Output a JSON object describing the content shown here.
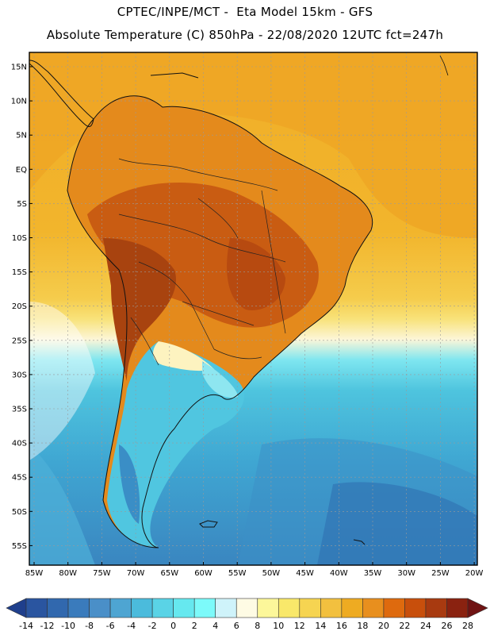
{
  "header": {
    "line1": "CPTEC/INPE/MCT -  Eta Model 15km - GFS",
    "line2": "Absolute Temperature (C) 850hPa - 22/08/2020 12UTC fct=247h"
  },
  "map": {
    "lat_labels": [
      "15N",
      "10N",
      "5N",
      "EQ",
      "5S",
      "10S",
      "15S",
      "20S",
      "25S",
      "30S",
      "35S",
      "40S",
      "45S",
      "50S",
      "55S"
    ],
    "lon_labels": [
      "85W",
      "80W",
      "75W",
      "70W",
      "65W",
      "60W",
      "55W",
      "50W",
      "45W",
      "40W",
      "35W",
      "30W",
      "25W",
      "20W"
    ]
  },
  "colorbar": {
    "labels": [
      "-14",
      "-12",
      "-10",
      "-8",
      "-6",
      "-4",
      "-2",
      "0",
      "2",
      "4",
      "6",
      "8",
      "10",
      "12",
      "14",
      "16",
      "18",
      "20",
      "22",
      "24",
      "26",
      "28"
    ],
    "colors": [
      "#1f3f8c",
      "#2a55a0",
      "#3168ae",
      "#3a7bbc",
      "#4a8fc8",
      "#4ea5d2",
      "#4bbbdc",
      "#5ad3e6",
      "#66e8ef",
      "#7cfafa",
      "#cff3fa",
      "#fefbe4",
      "#fcf79a",
      "#f9e86a",
      "#f6d451",
      "#f2c03f",
      "#eeab22",
      "#e88f1e",
      "#de6a0e",
      "#c84f0c",
      "#a83a10",
      "#8a2210",
      "#6f1313"
    ],
    "colors_note": "21 interior bins plus two end arrows"
  },
  "palette": {
    "ocean_warm": "#f0b028",
    "ocean_mid": "#f4c84a",
    "ocean_cool": "#48c8e0",
    "ocean_cold": "#3a8ec6",
    "land_hot": "#c25414"
  }
}
